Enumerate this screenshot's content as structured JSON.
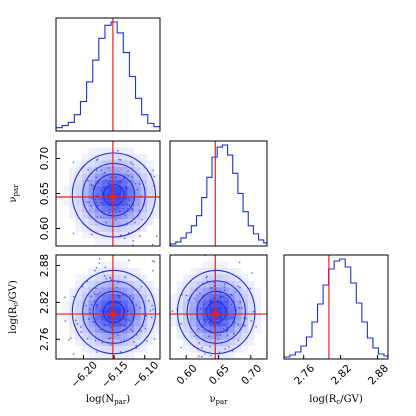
{
  "chart_data": {
    "type": "corner",
    "parameters": [
      {
        "key": "N",
        "label_main": "log(N",
        "label_sub": "par",
        "label_end": ")",
        "range": [
          -6.245,
          -6.075
        ],
        "ticks": [
          -6.2,
          -6.15,
          -6.1
        ],
        "tick_labels": [
          "−6.20",
          "−6.15",
          "−6.10"
        ],
        "truth": -6.152
      },
      {
        "key": "nu",
        "label_main": "ν",
        "label_sub": "par",
        "label_end": "",
        "range": [
          0.575,
          0.725
        ],
        "ticks": [
          0.6,
          0.65,
          0.7
        ],
        "tick_labels": [
          "0.60",
          "0.65",
          "0.70"
        ],
        "truth": 0.645
      },
      {
        "key": "R",
        "label_main": "log(R",
        "label_sub": "c",
        "label_end": "/GV)",
        "range": [
          2.728,
          2.897
        ],
        "ticks": [
          2.76,
          2.82,
          2.88
        ],
        "tick_labels": [
          "2.76",
          "2.82",
          "2.88"
        ],
        "truth": 2.801
      }
    ],
    "marginals": {
      "N": {
        "centers": [
          -6.24,
          -6.23,
          -6.22,
          -6.21,
          -6.2,
          -6.19,
          -6.18,
          -6.17,
          -6.16,
          -6.15,
          -6.14,
          -6.13,
          -6.12,
          -6.11,
          -6.1,
          -6.09,
          -6.08
        ],
        "values": [
          0.03,
          0.05,
          0.08,
          0.15,
          0.27,
          0.45,
          0.65,
          0.85,
          0.97,
          1.0,
          0.9,
          0.72,
          0.5,
          0.3,
          0.15,
          0.07,
          0.04
        ]
      },
      "nu": {
        "centers": [
          0.58,
          0.588,
          0.596,
          0.604,
          0.612,
          0.62,
          0.628,
          0.636,
          0.644,
          0.652,
          0.66,
          0.668,
          0.676,
          0.684,
          0.692,
          0.7,
          0.708,
          0.716,
          0.724
        ],
        "values": [
          0.02,
          0.04,
          0.08,
          0.13,
          0.2,
          0.3,
          0.48,
          0.68,
          0.88,
          0.98,
          1.0,
          0.9,
          0.72,
          0.52,
          0.34,
          0.2,
          0.12,
          0.06,
          0.03
        ]
      },
      "R": {
        "centers": [
          2.733,
          2.742,
          2.751,
          2.76,
          2.769,
          2.778,
          2.787,
          2.796,
          2.805,
          2.814,
          2.823,
          2.832,
          2.841,
          2.85,
          2.859,
          2.868,
          2.877,
          2.886,
          2.895
        ],
        "values": [
          0.02,
          0.04,
          0.07,
          0.13,
          0.22,
          0.37,
          0.55,
          0.74,
          0.9,
          0.98,
          1.0,
          0.92,
          0.76,
          0.56,
          0.37,
          0.21,
          0.11,
          0.05,
          0.03
        ]
      }
    },
    "truth_color": "#e8201a",
    "contour_color": "#1f2fd8",
    "density_color": "#2a37e8",
    "grid": false
  }
}
